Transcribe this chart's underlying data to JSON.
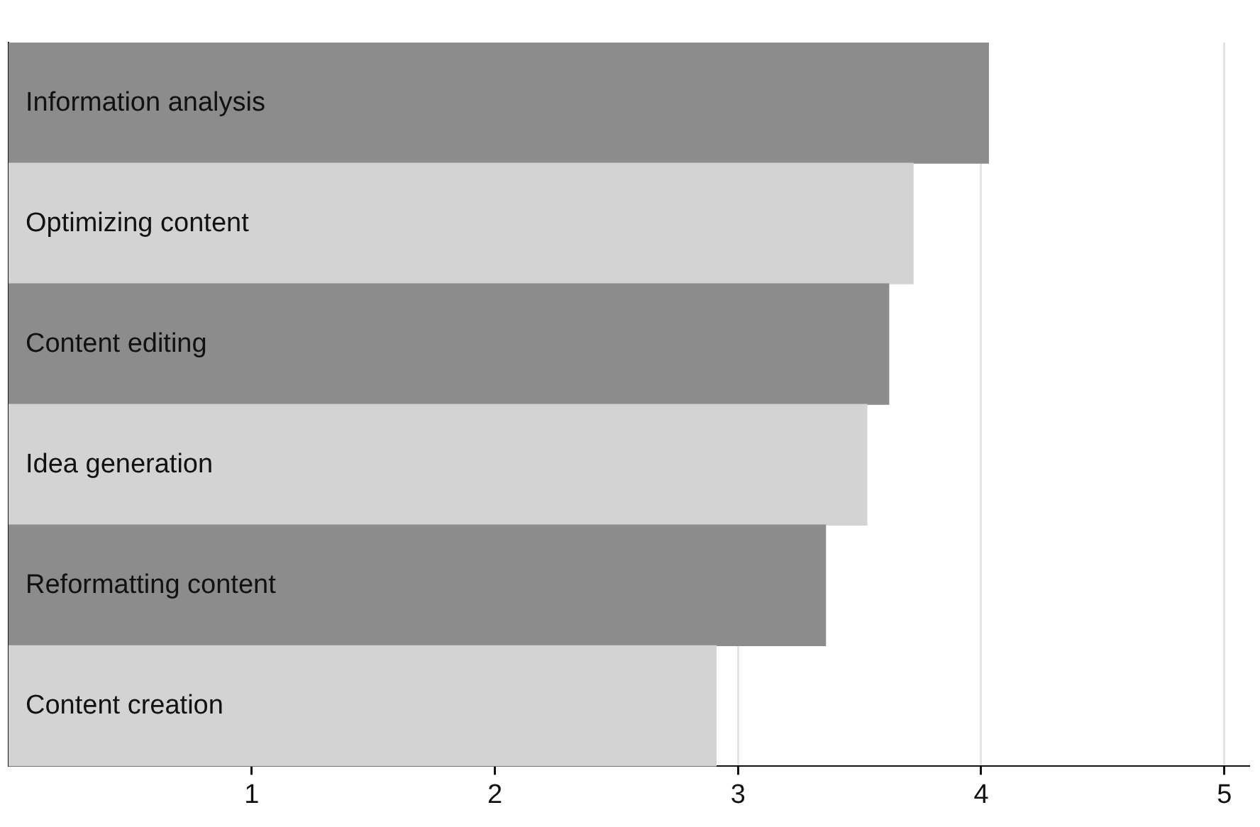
{
  "chart_data": {
    "type": "bar",
    "orientation": "horizontal",
    "categories": [
      "Information analysis",
      "Optimizing content",
      "Content editing",
      "Idea generation",
      "Reformatting content",
      "Content creation"
    ],
    "values": [
      4.03,
      3.72,
      3.62,
      3.53,
      3.36,
      2.91
    ],
    "colors": [
      "#8c8c8c",
      "#d3d3d3",
      "#8c8c8c",
      "#d3d3d3",
      "#8c8c8c",
      "#d3d3d3"
    ],
    "xlim": [
      0,
      5.1
    ],
    "xticks": [
      1,
      2,
      3,
      4,
      5
    ],
    "grid": "x"
  }
}
